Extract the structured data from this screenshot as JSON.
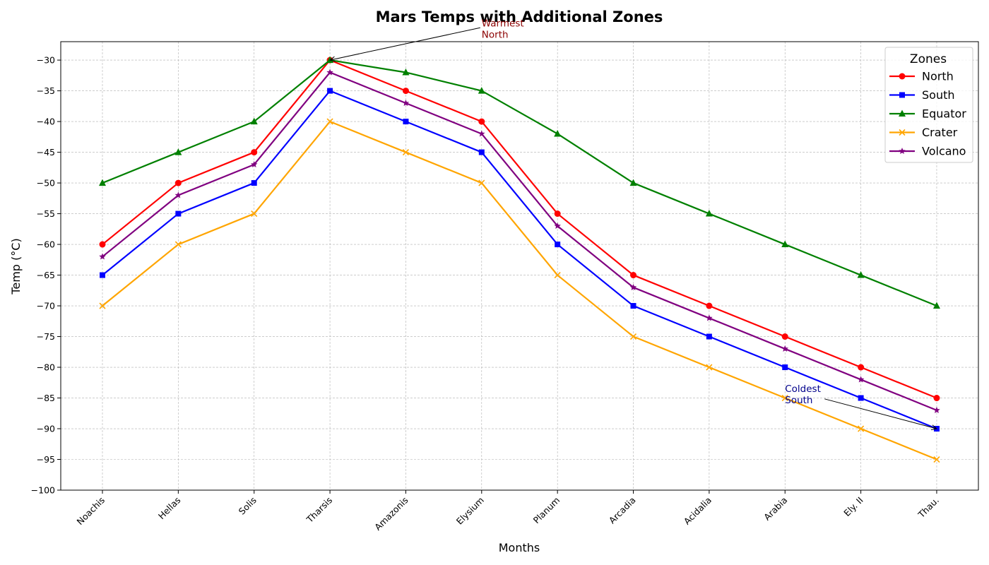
{
  "chart_data": {
    "type": "line",
    "title": "Mars Temps with Additional Zones",
    "xlabel": "Months",
    "ylabel": "Temp (°C)",
    "categories": [
      "Noachis",
      "Hellas",
      "Solis",
      "Tharsis",
      "Amazonis",
      "Elysium",
      "Planum",
      "Arcadia",
      "Acidalia",
      "Arabia",
      "Ely. II",
      "Thau."
    ],
    "ylim": [
      -100,
      -27
    ],
    "yticks": [
      -30,
      -35,
      -40,
      -45,
      -50,
      -55,
      -60,
      -65,
      -70,
      -75,
      -80,
      -85,
      -90,
      -95,
      -100
    ],
    "grid": true,
    "legend": {
      "title": "Zones",
      "placement": "top-right"
    },
    "series": [
      {
        "name": "North",
        "color": "#ff0000",
        "marker": "circle",
        "values": [
          -60,
          -50,
          -45,
          -30,
          -35,
          -40,
          -55,
          -65,
          -70,
          -75,
          -80,
          -85
        ]
      },
      {
        "name": "South",
        "color": "#0000ff",
        "marker": "square",
        "values": [
          -65,
          -55,
          -50,
          -35,
          -40,
          -45,
          -60,
          -70,
          -75,
          -80,
          -85,
          -90
        ]
      },
      {
        "name": "Equator",
        "color": "#008000",
        "marker": "triangle",
        "values": [
          -50,
          -45,
          -40,
          -30,
          -32,
          -35,
          -42,
          -50,
          -55,
          -60,
          -65,
          -70
        ]
      },
      {
        "name": "Crater",
        "color": "#ffa500",
        "marker": "x",
        "values": [
          -70,
          -60,
          -55,
          -40,
          -45,
          -50,
          -65,
          -75,
          -80,
          -85,
          -90,
          -95
        ]
      },
      {
        "name": "Volcano",
        "color": "#800080",
        "marker": "star",
        "values": [
          -62,
          -52,
          -47,
          -32,
          -37,
          -42,
          -57,
          -67,
          -72,
          -77,
          -82,
          -87
        ]
      }
    ],
    "annotations": [
      {
        "lines": [
          "Warmest",
          "North"
        ],
        "color": "#8b0000",
        "target_category": "Tharsis",
        "target_value": -30,
        "text_category": "Elysium",
        "text_value": -24.5
      },
      {
        "lines": [
          "Coldest",
          "South"
        ],
        "color": "#00008b",
        "target_category": "Thau.",
        "target_value": -90,
        "text_category": "Arabia",
        "text_value": -84
      }
    ]
  }
}
